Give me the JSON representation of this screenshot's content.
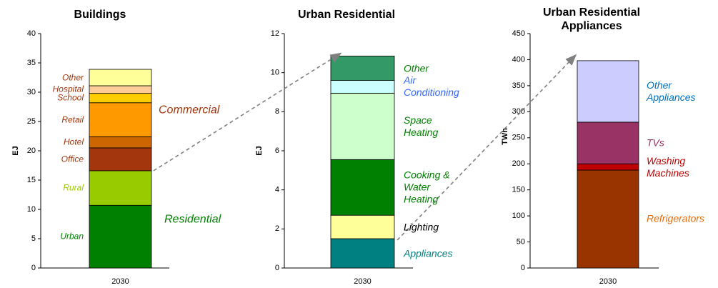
{
  "chart_data": [
    {
      "type": "bar",
      "title": "Buildings",
      "y_label": "EJ",
      "categories": [
        "2030"
      ],
      "ylim": [
        0,
        40
      ],
      "yticks": [
        0,
        5,
        10,
        15,
        20,
        25,
        30,
        35,
        40
      ],
      "series": [
        {
          "name": "Urban",
          "color": "#008000",
          "label_color": "#008000",
          "values": [
            10.7
          ]
        },
        {
          "name": "Rural",
          "color": "#99cc00",
          "label_color": "#99cc00",
          "values": [
            5.9
          ]
        },
        {
          "name": "Office",
          "color": "#a3360c",
          "label_color": "#a3360c",
          "values": [
            3.9
          ]
        },
        {
          "name": "Hotel",
          "color": "#cc6600",
          "label_color": "#a3360c",
          "values": [
            1.9
          ]
        },
        {
          "name": "Retail",
          "color": "#ff9900",
          "label_color": "#a3360c",
          "values": [
            5.8
          ]
        },
        {
          "name": "School",
          "color": "#ffcc00",
          "label_color": "#a3360c",
          "values": [
            1.6
          ]
        },
        {
          "name": "Hospital",
          "color": "#ffcc99",
          "label_color": "#a3360c",
          "values": [
            1.3
          ]
        },
        {
          "name": "Other",
          "color": "#ffff99",
          "label_color": "#a3360c",
          "values": [
            2.8
          ]
        }
      ],
      "annotations": [
        {
          "text": "Commercial",
          "color": "#a3360c"
        },
        {
          "text": "Residential",
          "color": "#008000"
        }
      ]
    },
    {
      "type": "bar",
      "title": "Urban Residential",
      "y_label": "EJ",
      "categories": [
        "2030"
      ],
      "ylim": [
        0,
        12
      ],
      "yticks": [
        0,
        2,
        4,
        6,
        8,
        10,
        12
      ],
      "series": [
        {
          "name": "Appliances",
          "color": "#008080",
          "label_color": "#008080",
          "values": [
            1.5
          ]
        },
        {
          "name": "Lighting",
          "color": "#ffff99",
          "label_color": "#000000",
          "values": [
            1.2
          ]
        },
        {
          "name": "Cooking & Water Heating",
          "color": "#008000",
          "label_color": "#008000",
          "values": [
            2.85
          ]
        },
        {
          "name": "Space Heating",
          "color": "#ccffcc",
          "label_color": "#008000",
          "values": [
            3.4
          ]
        },
        {
          "name": "Air Conditioning",
          "color": "#ccffff",
          "label_color": "#3366ff",
          "values": [
            0.65
          ]
        },
        {
          "name": "Other",
          "color": "#339966",
          "label_color": "#008000",
          "values": [
            1.25
          ]
        }
      ]
    },
    {
      "type": "bar",
      "title": "Urban Residential Appliances",
      "y_label": "TWh",
      "categories": [
        "2030"
      ],
      "ylim": [
        0,
        450
      ],
      "yticks": [
        0,
        50,
        100,
        150,
        200,
        250,
        300,
        350,
        400,
        450
      ],
      "series": [
        {
          "name": "Refrigerators",
          "color": "#993300",
          "label_color": "#e46c0a",
          "values": [
            188
          ]
        },
        {
          "name": "Washing Machines",
          "color": "#c00000",
          "label_color": "#c00000",
          "values": [
            12
          ]
        },
        {
          "name": "TVs",
          "color": "#993366",
          "label_color": "#993366",
          "values": [
            80
          ]
        },
        {
          "name": "Other Appliances",
          "color": "#ccccff",
          "label_color": "#0070c0",
          "values": [
            118
          ]
        }
      ]
    }
  ]
}
